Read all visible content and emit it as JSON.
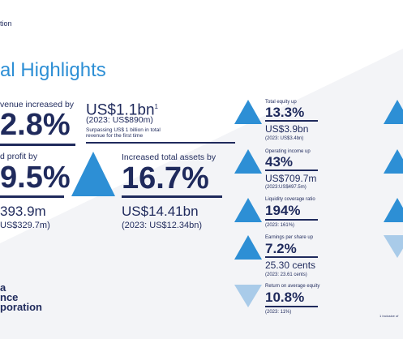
{
  "header": {
    "corp_fragment": "tion",
    "title": "al Highlights"
  },
  "left": {
    "revenue_label": "venue increased by",
    "revenue_pct": "2.8%",
    "profit_label": "d profit by",
    "profit_pct": "9.5%",
    "profit_value": "393.9m",
    "profit_prev": "US$329.7m)"
  },
  "revenue_total": {
    "value": "US$1.1bn",
    "footnote_mark": "1",
    "prev": "(2023: US$890m)",
    "note_line1": "Surpassing US$ 1 billion in total",
    "note_line2": "revenue for the first time"
  },
  "assets": {
    "label": "Increased total assets by",
    "pct": "16.7%",
    "value": "US$14.41bn",
    "prev": "(2023: US$12.34bn)"
  },
  "metrics": [
    {
      "label": "Total equity up",
      "value": "13.3%",
      "sub": "US$3.9bn",
      "prev": "(2023: US$3.4bn)"
    },
    {
      "label": "Operating income up",
      "value": "43%",
      "sub": "US$709.7m",
      "prev": "(2023:US$497.5m)"
    },
    {
      "label": "Liquidity coverage ratio",
      "value": "194%",
      "sub": "",
      "prev": "(2023: 161%)"
    },
    {
      "label": "Earnings per share up",
      "value": "7.2%",
      "sub": "25.30 cents",
      "prev": "(2023: 23.61 cents)"
    },
    {
      "label": "Return on average equity",
      "value": "10.8%",
      "sub": "",
      "prev": "(2023: 11%)"
    }
  ],
  "logo": {
    "line1": "a",
    "line2": "nce",
    "line3": "poration"
  },
  "footnote": "1 Inclusive of",
  "colors": {
    "navy": "#1f2a5c",
    "blue": "#2d8fd5",
    "light_blue": "#a9cbe9"
  }
}
